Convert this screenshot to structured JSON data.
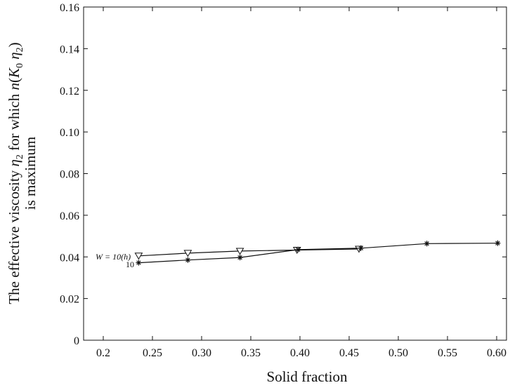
{
  "chart_data": {
    "type": "line",
    "xlabel": "Solid fraction",
    "ylabel_line1_prefix": "The effective viscosity ",
    "ylabel_line1_eta": "η",
    "ylabel_line1_eta_sub": "2",
    "ylabel_line1_middle": " for which ",
    "ylabel_line1_n": "n",
    "ylabel_line1_open": "(",
    "ylabel_line1_K": "K",
    "ylabel_line1_K_sub": "0",
    "ylabel_line1_space": " ",
    "ylabel_line1_eta2": "η",
    "ylabel_line1_eta2_sub": "2",
    "ylabel_line1_close": ")",
    "ylabel_line2": "is maximum",
    "xlim": [
      0.18,
      0.61
    ],
    "ylim": [
      0,
      0.16
    ],
    "xticks": [
      0.2,
      0.25,
      0.3,
      0.35,
      0.4,
      0.45,
      0.5,
      0.55,
      0.6
    ],
    "xtick_labels": [
      "0.2",
      "0.25",
      "0.30",
      "0.35",
      "0.40",
      "0.45",
      "0.50",
      "0.55",
      "0.60"
    ],
    "yticks": [
      0,
      0.02,
      0.04,
      0.06,
      0.08,
      0.1,
      0.12,
      0.14,
      0.16
    ],
    "ytick_labels": [
      "0",
      "0.02",
      "0.04",
      "0.06",
      "0.08",
      "0.10",
      "0.12",
      "0.14",
      "0.16"
    ],
    "grid": false,
    "series": [
      {
        "marker": "triangle-down",
        "x": [
          0.236,
          0.286,
          0.339,
          0.397,
          0.46
        ],
        "y": [
          0.0405,
          0.0418,
          0.0428,
          0.0433,
          0.0438
        ]
      },
      {
        "marker": "asterisk",
        "x": [
          0.236,
          0.286,
          0.339,
          0.398,
          0.462,
          0.529,
          0.601
        ],
        "y": [
          0.0372,
          0.0385,
          0.0397,
          0.0435,
          0.0442,
          0.0464,
          0.0466
        ]
      }
    ],
    "annotations": {
      "top_label": "W = 10(h)",
      "bottom_label": "10"
    }
  }
}
